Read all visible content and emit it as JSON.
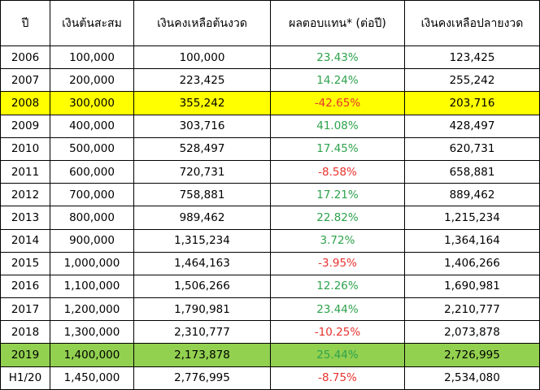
{
  "table": {
    "header": [
      "ปี",
      "เงินต้นสะสม",
      "เงินคงเหลือต้นงวด",
      "ผลตอบแทน* (ต่อปี)",
      "เงินคงเหลือปลายงวด"
    ],
    "return_colors": {
      "positive": "#2ea24c",
      "negative": "#e6322e"
    },
    "rows": [
      {
        "cells": [
          "2006",
          "100,000",
          "100,000",
          "23.43%",
          "123,425"
        ]
      },
      {
        "cells": [
          "2007",
          "200,000",
          "223,425",
          "14.24%",
          "255,242"
        ]
      },
      {
        "cells": [
          "2008",
          "300,000",
          "355,242",
          "-42.65%",
          "203,716"
        ],
        "highlight": "#ffff00"
      },
      {
        "cells": [
          "2009",
          "400,000",
          "303,716",
          "41.08%",
          "428,497"
        ]
      },
      {
        "cells": [
          "2010",
          "500,000",
          "528,497",
          "17.45%",
          "620,731"
        ]
      },
      {
        "cells": [
          "2011",
          "600,000",
          "720,731",
          "-8.58%",
          "658,881"
        ]
      },
      {
        "cells": [
          "2012",
          "700,000",
          "758,881",
          "17.21%",
          "889,462"
        ]
      },
      {
        "cells": [
          "2013",
          "800,000",
          "989,462",
          "22.82%",
          "1,215,234"
        ]
      },
      {
        "cells": [
          "2014",
          "900,000",
          "1,315,234",
          "3.72%",
          "1,364,164"
        ]
      },
      {
        "cells": [
          "2015",
          "1,000,000",
          "1,464,163",
          "-3.95%",
          "1,406,266"
        ]
      },
      {
        "cells": [
          "2016",
          "1,100,000",
          "1,506,266",
          "12.26%",
          "1,690,981"
        ]
      },
      {
        "cells": [
          "2017",
          "1,200,000",
          "1,790,981",
          "23.44%",
          "2,210,777"
        ]
      },
      {
        "cells": [
          "2018",
          "1,300,000",
          "2,310,777",
          "-10.25%",
          "2,073,878"
        ]
      },
      {
        "cells": [
          "2019",
          "1,400,000",
          "2,173,878",
          "25.44%",
          "2,726,995"
        ],
        "highlight": "#92d050"
      },
      {
        "cells": [
          "H1/20",
          "1,450,000",
          "2,776,995",
          "-8.75%",
          "2,534,080"
        ]
      }
    ]
  }
}
